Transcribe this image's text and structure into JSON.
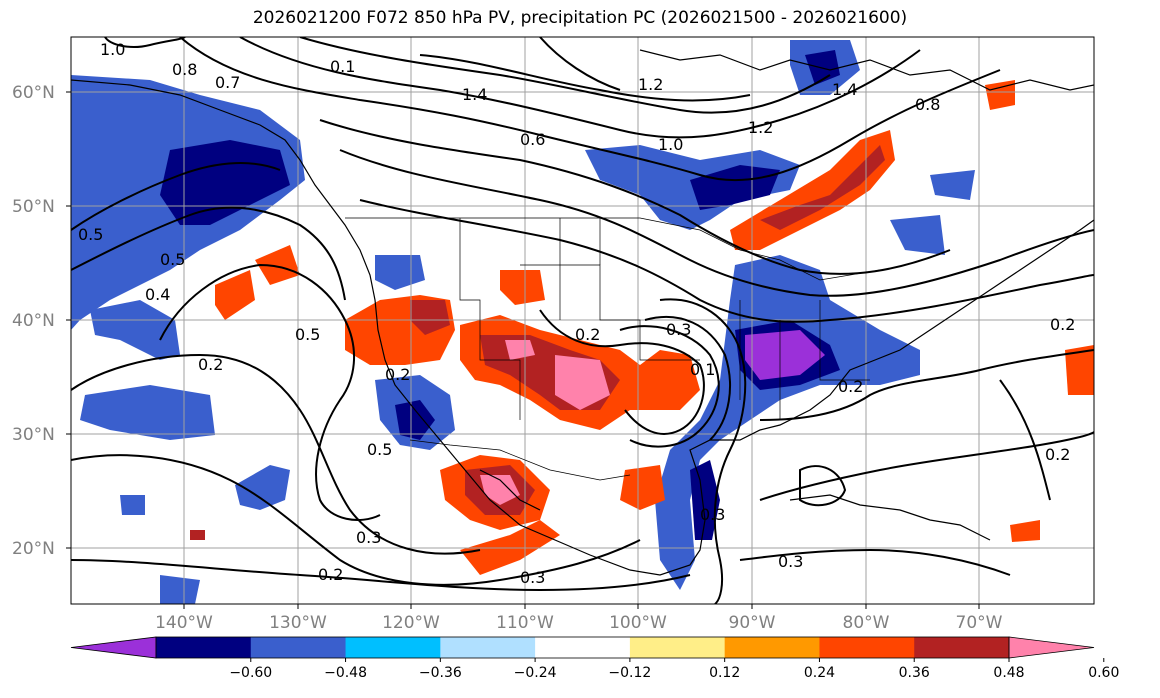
{
  "title": "2026021200 F072 850 hPa PV, precipitation PC (2026021500 - 2026021600)",
  "map": {
    "lat_labels": [
      "60°N",
      "50°N",
      "40°N",
      "30°N",
      "20°N"
    ],
    "lon_labels": [
      "140°W",
      "130°W",
      "120°W",
      "110°W",
      "100°W",
      "90°W",
      "80°W",
      "70°W"
    ],
    "contour_labels": [
      "1.0",
      "0.8",
      "0.7",
      "0.1",
      "1.4",
      "1.2",
      "0.6",
      "1.0",
      "1.2",
      "1.4",
      "0.8",
      "0.5",
      "0.5",
      "0.4",
      "0.2",
      "0.5",
      "0.2",
      "0.5",
      "0.3",
      "0.2",
      "0.3",
      "0.1",
      "0.2",
      "0.3",
      "0.3",
      "0.2",
      "0.2",
      "0.3",
      "0.2"
    ]
  },
  "colorbar": {
    "ticks": [
      "−0.60",
      "−0.48",
      "−0.36",
      "−0.24",
      "−0.12",
      "0.12",
      "0.24",
      "0.36",
      "0.48",
      "0.60"
    ],
    "colors": [
      "#9b30d9",
      "#000080",
      "#3a5fcd",
      "#00bfff",
      "#b0e0ff",
      "#ffffff",
      "#ffee88",
      "#ff9900",
      "#ff4500",
      "#b22222",
      "#ff82ab"
    ]
  },
  "colors": {
    "neg_strong": "#000080",
    "neg_med": "#3a5fcd",
    "neg_light": "#00bfff",
    "pos_red": "#ff4500",
    "pos_dark": "#b22222",
    "pos_pink": "#ff82ab",
    "purple": "#9b30d9"
  }
}
